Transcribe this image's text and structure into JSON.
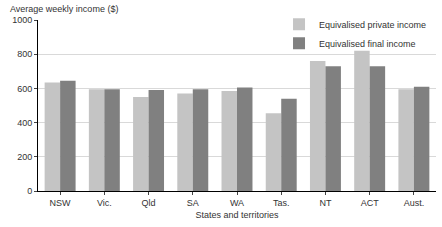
{
  "chart_data": {
    "type": "bar",
    "y_label": "Average weekly income ($)",
    "x_label": "States and territories",
    "categories": [
      "NSW",
      "Vic.",
      "Qld",
      "SA",
      "WA",
      "Tas.",
      "NT",
      "ACT",
      "Aust."
    ],
    "series": [
      {
        "name": "Equivalised private income",
        "color": "#c4c4c4",
        "values": [
          635,
          595,
          550,
          570,
          585,
          455,
          760,
          820,
          595
        ]
      },
      {
        "name": "Equivalised final income",
        "color": "#808080",
        "values": [
          645,
          595,
          590,
          595,
          605,
          540,
          730,
          730,
          610
        ]
      }
    ],
    "ylim": [
      0,
      1000
    ],
    "yticks": [
      0,
      200,
      400,
      600,
      800,
      1000
    ],
    "grid": true,
    "legend": "top right"
  }
}
